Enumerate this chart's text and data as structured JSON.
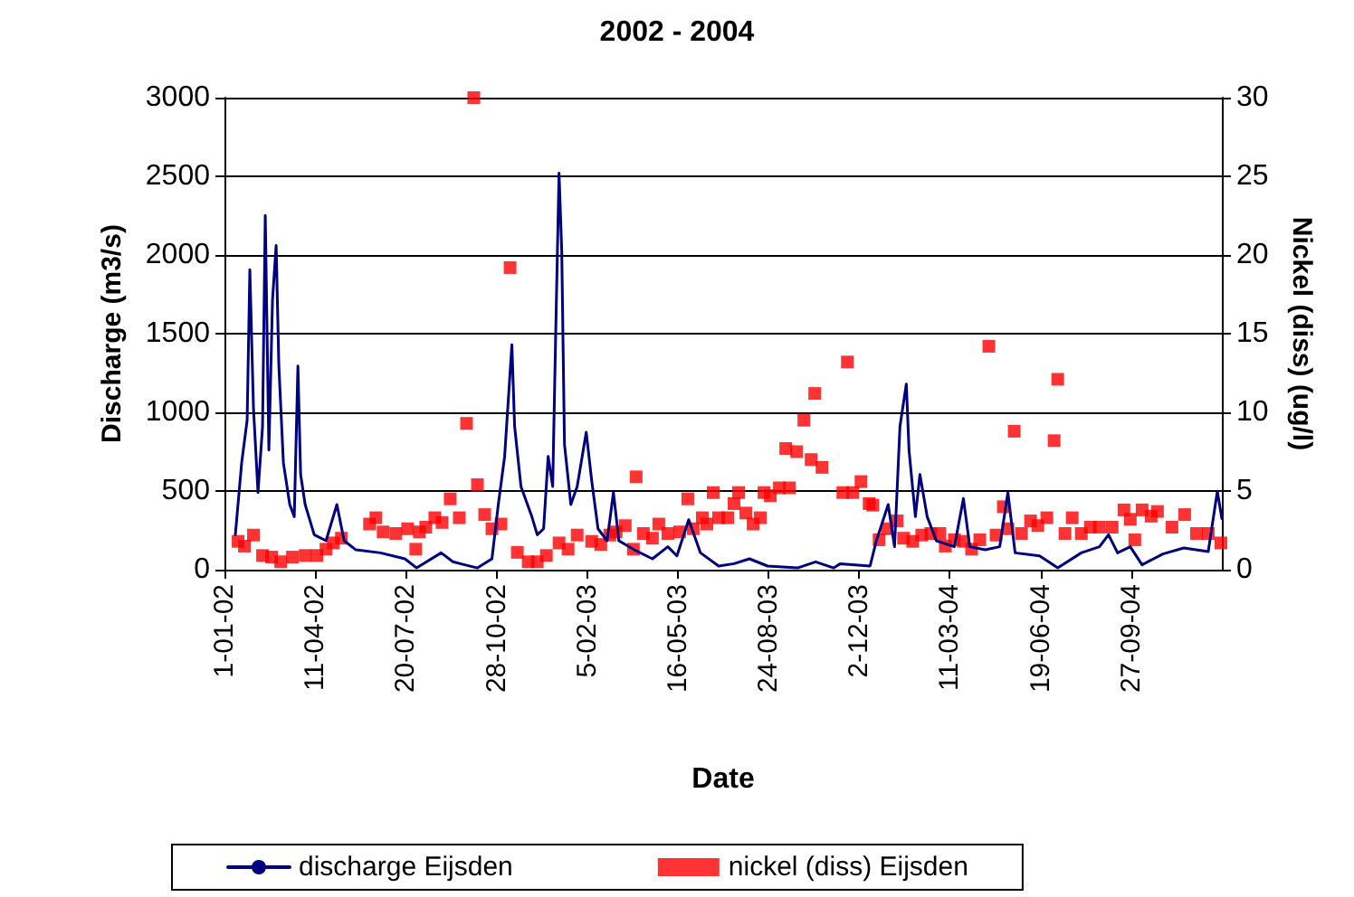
{
  "chart_data": {
    "type": "line",
    "title": "2002 - 2004",
    "xlabel": "Date",
    "ylabel": "Discharge (m3/s)",
    "y2label": "Nickel (diss) (ug/l)",
    "xlim": [
      "2002-01-01",
      "2005-01-05"
    ],
    "xticks": [
      {
        "value": "2002-01-01",
        "label": "1-01-02"
      },
      {
        "value": "2002-04-11",
        "label": "11-04-02"
      },
      {
        "value": "2002-07-20",
        "label": "20-07-02"
      },
      {
        "value": "2002-10-28",
        "label": "28-10-02"
      },
      {
        "value": "2003-02-05",
        "label": "5-02-03"
      },
      {
        "value": "2003-05-16",
        "label": "16-05-03"
      },
      {
        "value": "2003-08-24",
        "label": "24-08-03"
      },
      {
        "value": "2003-12-02",
        "label": "2-12-03"
      },
      {
        "value": "2004-03-11",
        "label": "11-03-04"
      },
      {
        "value": "2004-06-19",
        "label": "19-06-04"
      },
      {
        "value": "2004-09-27",
        "label": "27-09-04"
      }
    ],
    "ylim": [
      0,
      3000
    ],
    "yticks": [
      0,
      500,
      1000,
      1500,
      2000,
      2500,
      3000
    ],
    "y2lim": [
      0,
      30
    ],
    "y2ticks": [
      0,
      5,
      10,
      15,
      20,
      25,
      30
    ],
    "grid": "y",
    "legend": "bottom",
    "series": [
      {
        "name": "discharge Eijsden",
        "marker": "none",
        "line_style": "solid",
        "color": "#000080",
        "x": [
          "2002-01-13",
          "2002-01-20",
          "2002-01-26",
          "2002-01-29",
          "2002-02-02",
          "2002-02-07",
          "2002-02-12",
          "2002-02-15",
          "2002-02-19",
          "2002-02-23",
          "2002-02-27",
          "2002-03-02",
          "2002-03-07",
          "2002-03-14",
          "2002-03-19",
          "2002-03-23",
          "2002-03-26",
          "2002-03-31",
          "2002-04-10",
          "2002-04-23",
          "2002-05-05",
          "2002-05-13",
          "2002-05-26",
          "2002-06-22",
          "2002-07-19",
          "2002-08-01",
          "2002-08-28",
          "2002-09-10",
          "2002-10-07",
          "2002-10-23",
          "2002-10-30",
          "2002-11-06",
          "2002-11-14",
          "2002-11-17",
          "2002-11-24",
          "2002-12-06",
          "2002-12-12",
          "2002-12-19",
          "2002-12-24",
          "2002-12-29",
          "2003-01-01",
          "2003-01-05",
          "2003-01-08",
          "2003-01-11",
          "2003-01-18",
          "2003-01-25",
          "2003-02-04",
          "2003-02-10",
          "2003-02-17",
          "2003-02-27",
          "2003-03-06",
          "2003-03-12",
          "2003-03-29",
          "2003-04-18",
          "2003-05-05",
          "2003-05-15",
          "2003-05-28",
          "2003-06-10",
          "2003-06-30",
          "2003-07-17",
          "2003-08-03",
          "2003-08-23",
          "2003-09-25",
          "2003-10-15",
          "2003-11-04",
          "2003-11-11",
          "2003-12-14",
          "2003-12-21",
          "2004-01-03",
          "2004-01-10",
          "2004-01-16",
          "2004-01-23",
          "2004-01-26",
          "2004-02-02",
          "2004-02-07",
          "2004-02-15",
          "2004-02-25",
          "2004-03-16",
          "2004-03-26",
          "2004-04-02",
          "2004-04-19",
          "2004-05-05",
          "2004-05-14",
          "2004-05-22",
          "2004-06-18",
          "2004-07-08",
          "2004-08-03",
          "2004-08-23",
          "2004-09-02",
          "2004-09-12",
          "2004-09-26",
          "2004-10-09",
          "2004-11-01",
          "2004-11-24",
          "2004-12-21",
          "2004-12-31",
          "2005-01-05"
        ],
        "values": [
          222,
          680,
          950,
          1907,
          1026,
          490,
          910,
          2252,
          760,
          1716,
          2060,
          1295,
          680,
          414,
          337,
          1295,
          605,
          414,
          222,
          184,
          414,
          184,
          126,
          107,
          69,
          11,
          107,
          50,
          11,
          69,
          414,
          720,
          1429,
          911,
          529,
          337,
          222,
          260,
          720,
          529,
          1410,
          2520,
          2022,
          797,
          414,
          529,
          873,
          567,
          260,
          184,
          490,
          184,
          126,
          69,
          146,
          88,
          318,
          107,
          23,
          38,
          69,
          23,
          11,
          50,
          11,
          38,
          23,
          184,
          414,
          146,
          911,
          1180,
          758,
          337,
          605,
          337,
          184,
          146,
          452,
          146,
          126,
          146,
          490,
          107,
          88,
          11,
          107,
          146,
          222,
          107,
          146,
          31,
          100,
          138,
          115,
          498,
          325
        ]
      },
      {
        "name": "nickel (diss) Eijsden",
        "type": "scatter",
        "marker": "square",
        "axis": "y2",
        "color": "#ff0000",
        "x": [
          "2002-01-16",
          "2002-01-23",
          "2002-02-02",
          "2002-02-12",
          "2002-02-22",
          "2002-03-04",
          "2002-03-17",
          "2002-03-31",
          "2002-04-13",
          "2002-04-23",
          "2002-05-01",
          "2002-05-10",
          "2002-06-10",
          "2002-06-17",
          "2002-06-25",
          "2002-07-09",
          "2002-07-22",
          "2002-07-31",
          "2002-08-04",
          "2002-08-11",
          "2002-08-21",
          "2002-08-29",
          "2002-09-07",
          "2002-09-17",
          "2002-09-25",
          "2002-10-03",
          "2002-10-07",
          "2002-10-15",
          "2002-10-23",
          "2002-11-02",
          "2002-11-12",
          "2002-11-20",
          "2002-12-02",
          "2002-12-12",
          "2002-12-22",
          "2003-01-05",
          "2003-01-15",
          "2003-01-25",
          "2003-02-10",
          "2003-02-20",
          "2003-03-02",
          "2003-03-09",
          "2003-03-19",
          "2003-03-28",
          "2003-03-31",
          "2003-04-08",
          "2003-04-18",
          "2003-04-25",
          "2003-05-05",
          "2003-05-18",
          "2003-05-27",
          "2003-06-02",
          "2003-06-12",
          "2003-06-17",
          "2003-06-24",
          "2003-06-30",
          "2003-07-10",
          "2003-07-17",
          "2003-07-22",
          "2003-07-30",
          "2003-08-07",
          "2003-08-15",
          "2003-08-19",
          "2003-08-26",
          "2003-09-05",
          "2003-09-12",
          "2003-09-16",
          "2003-09-24",
          "2003-10-02",
          "2003-10-10",
          "2003-10-14",
          "2003-10-22",
          "2003-11-14",
          "2003-11-19",
          "2003-11-25",
          "2003-12-04",
          "2003-12-13",
          "2003-12-17",
          "2003-12-24",
          "2004-01-02",
          "2004-01-13",
          "2004-01-20",
          "2004-01-30",
          "2004-02-09",
          "2004-02-19",
          "2004-02-29",
          "2004-03-06",
          "2004-03-16",
          "2004-03-26",
          "2004-04-04",
          "2004-04-13",
          "2004-04-23",
          "2004-05-01",
          "2004-05-09",
          "2004-05-14",
          "2004-05-21",
          "2004-05-29",
          "2004-06-08",
          "2004-06-16",
          "2004-06-26",
          "2004-07-04",
          "2004-07-08",
          "2004-07-16",
          "2004-07-24",
          "2004-08-03",
          "2004-08-13",
          "2004-08-23",
          "2004-09-06",
          "2004-09-19",
          "2004-09-26",
          "2004-10-01",
          "2004-10-09",
          "2004-10-19",
          "2004-10-26",
          "2004-11-11",
          "2004-11-25",
          "2004-12-08",
          "2004-12-21",
          "2005-01-04"
        ],
        "values": [
          1.8,
          1.5,
          2.2,
          0.9,
          0.8,
          0.5,
          0.8,
          0.9,
          0.9,
          1.3,
          1.7,
          2.0,
          2.9,
          3.3,
          2.4,
          2.3,
          2.6,
          1.3,
          2.4,
          2.7,
          3.3,
          3.0,
          4.5,
          3.3,
          9.3,
          30,
          5.4,
          3.5,
          2.6,
          2.9,
          19.2,
          1.1,
          0.5,
          0.5,
          0.9,
          1.7,
          1.3,
          2.2,
          1.8,
          1.6,
          2.2,
          2.4,
          2.8,
          1.3,
          5.9,
          2.3,
          2.0,
          2.9,
          2.3,
          2.4,
          4.5,
          2.6,
          3.3,
          2.9,
          4.9,
          3.3,
          3.3,
          4.2,
          4.9,
          3.6,
          2.9,
          3.3,
          4.9,
          4.7,
          5.2,
          7.7,
          5.2,
          7.5,
          9.5,
          7.0,
          11.2,
          6.5,
          4.9,
          13.2,
          4.9,
          5.6,
          4.2,
          4.1,
          1.9,
          2.6,
          3.1,
          2.0,
          1.8,
          2.2,
          2.3,
          2.3,
          1.5,
          1.9,
          1.8,
          1.3,
          1.9,
          14.2,
          2.2,
          4.0,
          2.6,
          8.8,
          2.3,
          3.1,
          2.8,
          3.3,
          8.2,
          12.1,
          2.3,
          3.3,
          2.3,
          2.7,
          2.7,
          2.7,
          3.8,
          3.2,
          1.9,
          3.8,
          3.4,
          3.7,
          2.7,
          3.5,
          2.3,
          2.3,
          1.7
        ]
      }
    ]
  }
}
